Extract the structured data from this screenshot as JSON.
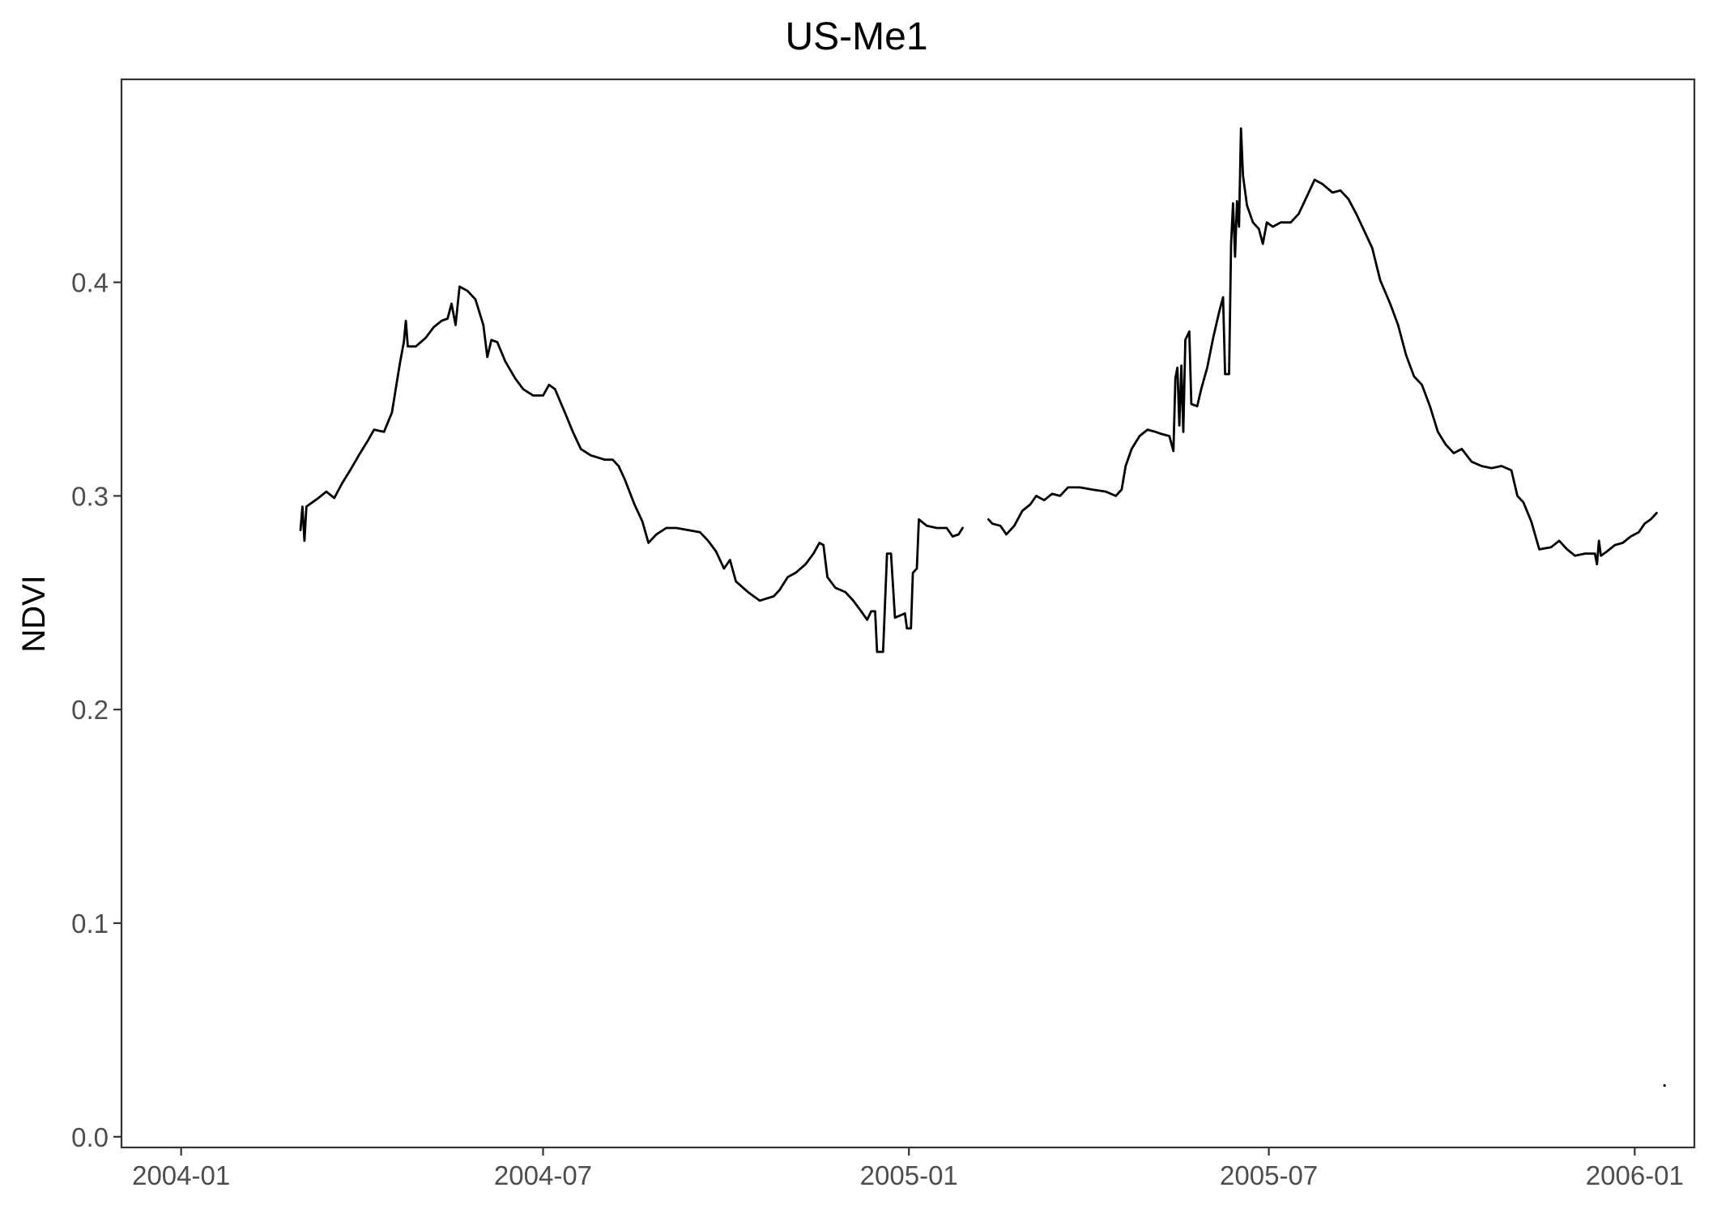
{
  "chart_data": {
    "type": "line",
    "title": "US-Me1",
    "xlabel": "",
    "ylabel": "NDVI",
    "xlim": [
      "2003-12-02",
      "2006-01-31"
    ],
    "ylim": [
      -0.005,
      0.495
    ],
    "x_ticks": [
      "2004-01",
      "2004-07",
      "2005-01",
      "2005-07",
      "2006-01"
    ],
    "y_ticks": [
      "0.0",
      "0.1",
      "0.2",
      "0.3",
      "0.4"
    ],
    "grid": false,
    "legend": "none",
    "colors": {
      "line": "#000000",
      "axis": "#333333",
      "tick_label": "#4d4d4d",
      "background": "#ffffff"
    },
    "series": [
      {
        "segments": [
          [
            [
              "2004-03-01",
              0.284
            ],
            [
              "2004-03-02",
              0.295
            ],
            [
              "2004-03-03",
              0.279
            ],
            [
              "2004-03-04",
              0.295
            ],
            [
              "2004-03-07",
              0.297
            ],
            [
              "2004-03-10",
              0.299
            ],
            [
              "2004-03-14",
              0.302
            ],
            [
              "2004-03-18",
              0.299
            ],
            [
              "2004-03-22",
              0.306
            ],
            [
              "2004-03-26",
              0.312
            ],
            [
              "2004-03-31",
              0.32
            ],
            [
              "2004-04-04",
              0.326
            ],
            [
              "2004-04-07",
              0.331
            ],
            [
              "2004-04-12",
              0.33
            ],
            [
              "2004-04-16",
              0.339
            ],
            [
              "2004-04-20",
              0.362
            ],
            [
              "2004-04-22",
              0.372
            ],
            [
              "2004-04-23",
              0.382
            ],
            [
              "2004-04-24",
              0.37
            ],
            [
              "2004-04-28",
              0.37
            ],
            [
              "2004-05-03",
              0.374
            ],
            [
              "2004-05-07",
              0.379
            ],
            [
              "2004-05-11",
              0.382
            ],
            [
              "2004-05-14",
              0.383
            ],
            [
              "2004-05-16",
              0.39
            ],
            [
              "2004-05-18",
              0.38
            ],
            [
              "2004-05-20",
              0.398
            ],
            [
              "2004-05-24",
              0.396
            ],
            [
              "2004-05-28",
              0.392
            ],
            [
              "2004-06-01",
              0.38
            ],
            [
              "2004-06-03",
              0.365
            ],
            [
              "2004-06-05",
              0.373
            ],
            [
              "2004-06-08",
              0.372
            ],
            [
              "2004-06-12",
              0.363
            ],
            [
              "2004-06-17",
              0.355
            ],
            [
              "2004-06-21",
              0.35
            ],
            [
              "2004-06-26",
              0.347
            ],
            [
              "2004-07-01",
              0.347
            ],
            [
              "2004-07-04",
              0.352
            ],
            [
              "2004-07-07",
              0.35
            ],
            [
              "2004-07-12",
              0.339
            ],
            [
              "2004-07-16",
              0.33
            ],
            [
              "2004-07-20",
              0.322
            ],
            [
              "2004-07-25",
              0.319
            ],
            [
              "2004-08-01",
              0.317
            ],
            [
              "2004-08-05",
              0.317
            ],
            [
              "2004-08-08",
              0.314
            ],
            [
              "2004-08-11",
              0.308
            ],
            [
              "2004-08-16",
              0.296
            ],
            [
              "2004-08-20",
              0.288
            ],
            [
              "2004-08-23",
              0.278
            ],
            [
              "2004-08-27",
              0.282
            ],
            [
              "2004-09-01",
              0.285
            ],
            [
              "2004-09-06",
              0.285
            ],
            [
              "2004-09-12",
              0.284
            ],
            [
              "2004-09-18",
              0.283
            ],
            [
              "2004-09-22",
              0.279
            ],
            [
              "2004-09-26",
              0.274
            ],
            [
              "2004-09-30",
              0.266
            ],
            [
              "2004-10-03",
              0.27
            ],
            [
              "2004-10-06",
              0.26
            ],
            [
              "2004-10-12",
              0.255
            ],
            [
              "2004-10-18",
              0.251
            ],
            [
              "2004-10-25",
              0.253
            ],
            [
              "2004-10-28",
              0.256
            ],
            [
              "2004-11-01",
              0.262
            ],
            [
              "2004-11-05",
              0.264
            ],
            [
              "2004-11-10",
              0.268
            ],
            [
              "2004-11-14",
              0.273
            ],
            [
              "2004-11-17",
              0.278
            ],
            [
              "2004-11-19",
              0.277
            ],
            [
              "2004-11-21",
              0.262
            ],
            [
              "2004-11-25",
              0.257
            ],
            [
              "2004-11-30",
              0.255
            ],
            [
              "2004-12-04",
              0.251
            ],
            [
              "2004-12-08",
              0.246
            ],
            [
              "2004-12-11",
              0.242
            ],
            [
              "2004-12-13",
              0.246
            ],
            [
              "2004-12-15",
              0.246
            ],
            [
              "2004-12-16",
              0.227
            ],
            [
              "2004-12-19",
              0.227
            ],
            [
              "2004-12-21",
              0.273
            ],
            [
              "2004-12-23",
              0.273
            ],
            [
              "2004-12-25",
              0.243
            ],
            [
              "2004-12-30",
              0.245
            ],
            [
              "2004-12-31",
              0.238
            ],
            [
              "2005-01-02",
              0.238
            ],
            [
              "2005-01-03",
              0.264
            ],
            [
              "2005-01-05",
              0.266
            ],
            [
              "2005-01-06",
              0.289
            ],
            [
              "2005-01-10",
              0.286
            ],
            [
              "2005-01-15",
              0.285
            ],
            [
              "2005-01-20",
              0.285
            ],
            [
              "2005-01-23",
              0.281
            ],
            [
              "2005-01-26",
              0.282
            ],
            [
              "2005-01-28",
              0.285
            ]
          ],
          [
            [
              "2005-02-10",
              0.289
            ],
            [
              "2005-02-12",
              0.287
            ],
            [
              "2005-02-16",
              0.286
            ],
            [
              "2005-02-19",
              0.282
            ],
            [
              "2005-02-23",
              0.286
            ],
            [
              "2005-02-27",
              0.293
            ],
            [
              "2005-03-03",
              0.296
            ],
            [
              "2005-03-06",
              0.3
            ],
            [
              "2005-03-10",
              0.298
            ],
            [
              "2005-03-14",
              0.301
            ],
            [
              "2005-03-18",
              0.3
            ],
            [
              "2005-03-22",
              0.304
            ],
            [
              "2005-03-28",
              0.304
            ],
            [
              "2005-04-03",
              0.303
            ],
            [
              "2005-04-10",
              0.302
            ],
            [
              "2005-04-15",
              0.3
            ],
            [
              "2005-04-18",
              0.303
            ],
            [
              "2005-04-20",
              0.314
            ],
            [
              "2005-04-23",
              0.322
            ],
            [
              "2005-04-27",
              0.328
            ],
            [
              "2005-05-01",
              0.331
            ],
            [
              "2005-05-05",
              0.33
            ],
            [
              "2005-05-08",
              0.329
            ],
            [
              "2005-05-12",
              0.328
            ],
            [
              "2005-05-14",
              0.321
            ],
            [
              "2005-05-15",
              0.355
            ],
            [
              "2005-05-16",
              0.36
            ],
            [
              "2005-05-17",
              0.333
            ],
            [
              "2005-05-18",
              0.361
            ],
            [
              "2005-05-19",
              0.33
            ],
            [
              "2005-05-20",
              0.373
            ],
            [
              "2005-05-22",
              0.377
            ],
            [
              "2005-05-23",
              0.343
            ],
            [
              "2005-05-26",
              0.342
            ],
            [
              "2005-05-28",
              0.35
            ],
            [
              "2005-05-31",
              0.36
            ],
            [
              "2005-06-03",
              0.374
            ],
            [
              "2005-06-06",
              0.386
            ],
            [
              "2005-06-08",
              0.393
            ],
            [
              "2005-06-09",
              0.357
            ],
            [
              "2005-06-11",
              0.357
            ],
            [
              "2005-06-12",
              0.418
            ],
            [
              "2005-06-13",
              0.437
            ],
            [
              "2005-06-14",
              0.412
            ],
            [
              "2005-06-15",
              0.438
            ],
            [
              "2005-06-16",
              0.426
            ],
            [
              "2005-06-17",
              0.472
            ],
            [
              "2005-06-18",
              0.45
            ],
            [
              "2005-06-20",
              0.436
            ],
            [
              "2005-06-23",
              0.428
            ],
            [
              "2005-06-26",
              0.425
            ],
            [
              "2005-06-28",
              0.418
            ],
            [
              "2005-06-30",
              0.428
            ],
            [
              "2005-07-03",
              0.426
            ],
            [
              "2005-07-07",
              0.428
            ],
            [
              "2005-07-12",
              0.428
            ],
            [
              "2005-07-16",
              0.432
            ],
            [
              "2005-07-20",
              0.44
            ],
            [
              "2005-07-24",
              0.448
            ],
            [
              "2005-07-28",
              0.446
            ],
            [
              "2005-08-02",
              0.442
            ],
            [
              "2005-08-06",
              0.443
            ],
            [
              "2005-08-10",
              0.439
            ],
            [
              "2005-08-14",
              0.432
            ],
            [
              "2005-08-18",
              0.424
            ],
            [
              "2005-08-22",
              0.416
            ],
            [
              "2005-08-26",
              0.401
            ],
            [
              "2005-08-31",
              0.39
            ],
            [
              "2005-09-04",
              0.38
            ],
            [
              "2005-09-08",
              0.366
            ],
            [
              "2005-09-12",
              0.356
            ],
            [
              "2005-09-16",
              0.352
            ],
            [
              "2005-09-20",
              0.342
            ],
            [
              "2005-09-24",
              0.33
            ],
            [
              "2005-09-28",
              0.324
            ],
            [
              "2005-10-02",
              0.32
            ],
            [
              "2005-10-06",
              0.322
            ],
            [
              "2005-10-11",
              0.316
            ],
            [
              "2005-10-16",
              0.314
            ],
            [
              "2005-10-21",
              0.313
            ],
            [
              "2005-10-26",
              0.314
            ],
            [
              "2005-10-31",
              0.312
            ],
            [
              "2005-11-03",
              0.3
            ],
            [
              "2005-11-06",
              0.297
            ],
            [
              "2005-11-10",
              0.288
            ],
            [
              "2005-11-14",
              0.275
            ],
            [
              "2005-11-20",
              0.276
            ],
            [
              "2005-11-24",
              0.279
            ],
            [
              "2005-11-28",
              0.275
            ],
            [
              "2005-12-02",
              0.272
            ],
            [
              "2005-12-07",
              0.273
            ],
            [
              "2005-12-12",
              0.273
            ],
            [
              "2005-12-13",
              0.268
            ],
            [
              "2005-12-14",
              0.279
            ],
            [
              "2005-12-15",
              0.272
            ],
            [
              "2005-12-18",
              0.274
            ],
            [
              "2005-12-22",
              0.277
            ],
            [
              "2005-12-26",
              0.278
            ],
            [
              "2005-12-30",
              0.281
            ],
            [
              "2006-01-03",
              0.283
            ],
            [
              "2006-01-06",
              0.287
            ],
            [
              "2006-01-09",
              0.289
            ],
            [
              "2006-01-12",
              0.292
            ]
          ]
        ],
        "isolated_points": [
          [
            "2006-01-16",
            0.024
          ]
        ]
      }
    ]
  }
}
